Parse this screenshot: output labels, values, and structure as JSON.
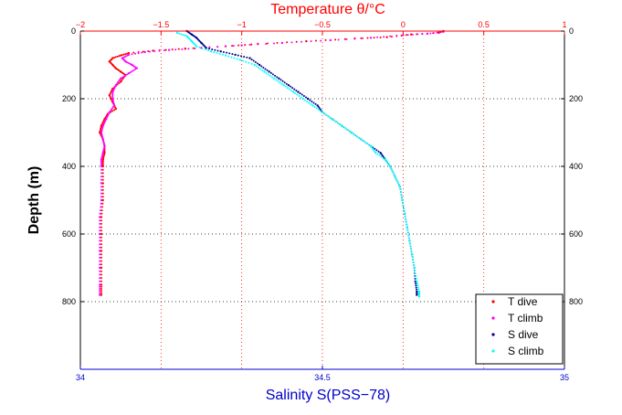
{
  "chart_data": {
    "type": "scatter",
    "top_axis": {
      "label": "Temperature θ/°C",
      "range": [
        -2,
        1
      ],
      "ticks": [
        "−2",
        "−1.5",
        "−1",
        "−0.5",
        "0",
        "0.5",
        "1"
      ]
    },
    "bottom_axis": {
      "label": "Salinity S(PSS−78)",
      "range": [
        34,
        35
      ],
      "ticks": [
        "34",
        "34.5",
        "35"
      ]
    },
    "y_axis": {
      "label": "Depth (m)",
      "range": [
        0,
        1000
      ],
      "reversed": true,
      "ticks": [
        "0",
        "200",
        "400",
        "600",
        "800"
      ]
    },
    "grid": true,
    "legend_position": "bottom-right",
    "legend": [
      "T dive",
      "T climb",
      "S dive",
      "S climb"
    ],
    "series": [
      {
        "name": "T dive",
        "axis": "temperature",
        "color": "#ff0000",
        "points": [
          [
            0.25,
            0
          ],
          [
            0.22,
            5
          ],
          [
            0.05,
            10
          ],
          [
            -0.1,
            18
          ],
          [
            -0.3,
            22
          ],
          [
            -0.6,
            30
          ],
          [
            -0.9,
            38
          ],
          [
            -1.1,
            45
          ],
          [
            -1.35,
            52
          ],
          [
            -1.55,
            58
          ],
          [
            -1.7,
            65
          ],
          [
            -1.75,
            72
          ],
          [
            -1.8,
            80
          ],
          [
            -1.82,
            90
          ],
          [
            -1.8,
            100
          ],
          [
            -1.78,
            110
          ],
          [
            -1.75,
            120
          ],
          [
            -1.72,
            130
          ],
          [
            -1.75,
            150
          ],
          [
            -1.8,
            170
          ],
          [
            -1.82,
            190
          ],
          [
            -1.8,
            210
          ],
          [
            -1.78,
            230
          ],
          [
            -1.83,
            245
          ],
          [
            -1.85,
            260
          ],
          [
            -1.87,
            280
          ],
          [
            -1.88,
            300
          ],
          [
            -1.86,
            320
          ],
          [
            -1.85,
            340
          ],
          [
            -1.85,
            360
          ],
          [
            -1.86,
            380
          ],
          [
            -1.86,
            400
          ],
          [
            -1.86,
            450
          ],
          [
            -1.86,
            500
          ],
          [
            -1.87,
            550
          ],
          [
            -1.87,
            600
          ],
          [
            -1.87,
            650
          ],
          [
            -1.87,
            700
          ],
          [
            -1.87,
            750
          ],
          [
            -1.87,
            780
          ]
        ]
      },
      {
        "name": "T climb",
        "axis": "temperature",
        "color": "#ff00ff",
        "points": [
          [
            0.25,
            2
          ],
          [
            0.15,
            8
          ],
          [
            0.0,
            12
          ],
          [
            -0.2,
            20
          ],
          [
            -0.45,
            27
          ],
          [
            -0.75,
            35
          ],
          [
            -1.0,
            42
          ],
          [
            -1.25,
            50
          ],
          [
            -1.45,
            56
          ],
          [
            -1.6,
            62
          ],
          [
            -1.7,
            70
          ],
          [
            -1.74,
            80
          ],
          [
            -1.72,
            90
          ],
          [
            -1.68,
            100
          ],
          [
            -1.65,
            110
          ],
          [
            -1.7,
            125
          ],
          [
            -1.75,
            140
          ],
          [
            -1.78,
            160
          ],
          [
            -1.8,
            180
          ],
          [
            -1.8,
            200
          ],
          [
            -1.79,
            220
          ],
          [
            -1.82,
            240
          ],
          [
            -1.84,
            260
          ],
          [
            -1.86,
            280
          ],
          [
            -1.87,
            300
          ],
          [
            -1.86,
            320
          ],
          [
            -1.85,
            340
          ],
          [
            -1.86,
            360
          ],
          [
            -1.87,
            380
          ],
          [
            -1.87,
            400
          ],
          [
            -1.87,
            450
          ],
          [
            -1.87,
            500
          ],
          [
            -1.88,
            550
          ],
          [
            -1.88,
            600
          ],
          [
            -1.88,
            650
          ],
          [
            -1.88,
            700
          ],
          [
            -1.88,
            750
          ],
          [
            -1.88,
            780
          ]
        ]
      },
      {
        "name": "S dive",
        "axis": "salinity",
        "color": "#00008b",
        "points": [
          [
            34.22,
            0
          ],
          [
            34.23,
            10
          ],
          [
            34.24,
            20
          ],
          [
            34.25,
            35
          ],
          [
            34.26,
            50
          ],
          [
            34.29,
            60
          ],
          [
            34.32,
            70
          ],
          [
            34.35,
            80
          ],
          [
            34.37,
            100
          ],
          [
            34.39,
            120
          ],
          [
            34.41,
            140
          ],
          [
            34.43,
            160
          ],
          [
            34.45,
            180
          ],
          [
            34.47,
            200
          ],
          [
            34.49,
            220
          ],
          [
            34.5,
            240
          ],
          [
            34.52,
            260
          ],
          [
            34.54,
            280
          ],
          [
            34.56,
            300
          ],
          [
            34.58,
            320
          ],
          [
            34.6,
            340
          ],
          [
            34.62,
            360
          ],
          [
            34.63,
            380
          ],
          [
            34.64,
            400
          ],
          [
            34.65,
            430
          ],
          [
            34.66,
            460
          ],
          [
            34.665,
            500
          ],
          [
            34.67,
            540
          ],
          [
            34.675,
            580
          ],
          [
            34.68,
            620
          ],
          [
            34.685,
            660
          ],
          [
            34.69,
            700
          ],
          [
            34.692,
            740
          ],
          [
            34.695,
            770
          ],
          [
            34.695,
            780
          ]
        ]
      },
      {
        "name": "S climb",
        "axis": "salinity",
        "color": "#00ffff",
        "points": [
          [
            34.2,
            5
          ],
          [
            34.22,
            15
          ],
          [
            34.23,
            30
          ],
          [
            34.24,
            45
          ],
          [
            34.27,
            60
          ],
          [
            34.3,
            72
          ],
          [
            34.33,
            85
          ],
          [
            34.36,
            100
          ],
          [
            34.38,
            120
          ],
          [
            34.4,
            140
          ],
          [
            34.42,
            160
          ],
          [
            34.44,
            180
          ],
          [
            34.46,
            200
          ],
          [
            34.48,
            220
          ],
          [
            34.5,
            240
          ],
          [
            34.52,
            260
          ],
          [
            34.54,
            280
          ],
          [
            34.56,
            300
          ],
          [
            34.58,
            320
          ],
          [
            34.6,
            340
          ],
          [
            34.61,
            360
          ],
          [
            34.63,
            380
          ],
          [
            34.64,
            400
          ],
          [
            34.65,
            430
          ],
          [
            34.66,
            460
          ],
          [
            34.665,
            500
          ],
          [
            34.67,
            540
          ],
          [
            34.675,
            580
          ],
          [
            34.68,
            620
          ],
          [
            34.685,
            660
          ],
          [
            34.69,
            700
          ],
          [
            34.695,
            740
          ],
          [
            34.7,
            770
          ],
          [
            34.7,
            785
          ]
        ]
      }
    ]
  }
}
